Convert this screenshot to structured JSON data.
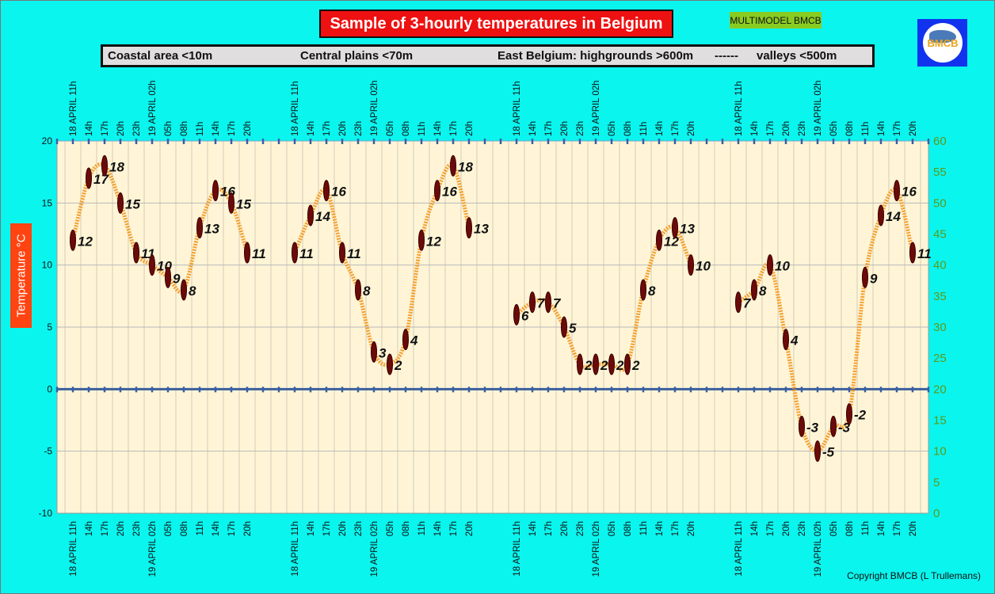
{
  "chart_data": {
    "type": "line",
    "title": "Sample of 3-hourly temperatures in Belgium",
    "badge": "MULTIMODEL BMCB",
    "logo_text": "BMCB",
    "ylabel": "Temperature   °C",
    "ylim": [
      -10,
      20
    ],
    "y_ticks": [
      20,
      15,
      10,
      5,
      0,
      -5,
      -10
    ],
    "y2lim": [
      0,
      60
    ],
    "y2_ticks": [
      60,
      55,
      50,
      45,
      40,
      35,
      30,
      25,
      20,
      15,
      10,
      5,
      0
    ],
    "grid": true,
    "legend_labels": [
      "Coastal area <10m",
      "Central plains <70m",
      "East Belgium: highgrounds >600m",
      "------",
      "valleys <500m"
    ],
    "x_top_labels": [
      "18 APRIL 11h",
      "14h",
      "17h",
      "20h",
      "23h",
      "19 APRIL 02h",
      "05h",
      "08h",
      "11h",
      "14h",
      "17h",
      "20h"
    ],
    "x_bottom_labels": [
      "18  APRIL 11h",
      "14h",
      "17h",
      "20h",
      "23h",
      "19  APRIL 02h",
      "05h",
      "08h",
      "11h",
      "14h",
      "17h",
      "20h"
    ],
    "series": [
      {
        "name": "Coastal area <10m",
        "values": [
          12,
          17,
          18,
          15,
          11,
          10,
          9,
          8,
          13,
          16,
          15,
          11
        ]
      },
      {
        "name": "Central plains <70m",
        "values": [
          11,
          14,
          16,
          11,
          8,
          3,
          2,
          4,
          12,
          16,
          18,
          13
        ]
      },
      {
        "name": "East Belgium: highgrounds >600m",
        "values": [
          6,
          7,
          7,
          5,
          2,
          2,
          2,
          2,
          8,
          12,
          13,
          10
        ]
      },
      {
        "name": "valleys <500m",
        "values": [
          7,
          8,
          10,
          4,
          -3,
          -5,
          -3,
          -2,
          9,
          14,
          16,
          11
        ]
      }
    ],
    "colors": {
      "background": "#0af5ee",
      "plot": "#fff5d6",
      "line": "#f5a030",
      "marker": "#6b0a0a",
      "zero_line": "#3a5fa0",
      "right_axis": "#5c9a1a"
    }
  },
  "copyright": "Copyright BMCB (L Trullemans)"
}
